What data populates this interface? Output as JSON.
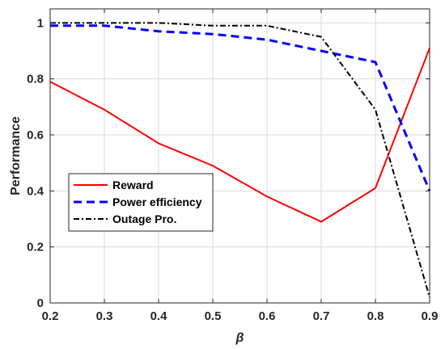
{
  "chart_data": {
    "type": "line",
    "xlabel": "β",
    "ylabel": "Performance",
    "xlim": [
      0.2,
      0.9
    ],
    "ylim": [
      0,
      1.05
    ],
    "grid": true,
    "legend_position": "center-left",
    "x": [
      0.2,
      0.3,
      0.4,
      0.5,
      0.6,
      0.7,
      0.8,
      0.9
    ],
    "x_ticks": [
      "0.2",
      "0.3",
      "0.4",
      "0.5",
      "0.6",
      "0.7",
      "0.8",
      "0.9"
    ],
    "y_ticks": [
      "0",
      "0.2",
      "0.4",
      "0.6",
      "0.8",
      "1"
    ],
    "series": [
      {
        "name": "Reward",
        "color": "#ff0000",
        "line_style": "solid",
        "values": [
          0.79,
          0.69,
          0.57,
          0.49,
          0.38,
          0.29,
          0.41,
          0.91
        ]
      },
      {
        "name": "Power efficiency",
        "color": "#0000ff",
        "line_style": "dashed",
        "values": [
          0.99,
          0.99,
          0.97,
          0.96,
          0.94,
          0.9,
          0.86,
          0.4
        ]
      },
      {
        "name": "Outage Pro.",
        "color": "#000000",
        "line_style": "dash-dot",
        "values": [
          1.0,
          1.0,
          1.0,
          0.99,
          0.99,
          0.95,
          0.69,
          0.02
        ]
      }
    ]
  }
}
